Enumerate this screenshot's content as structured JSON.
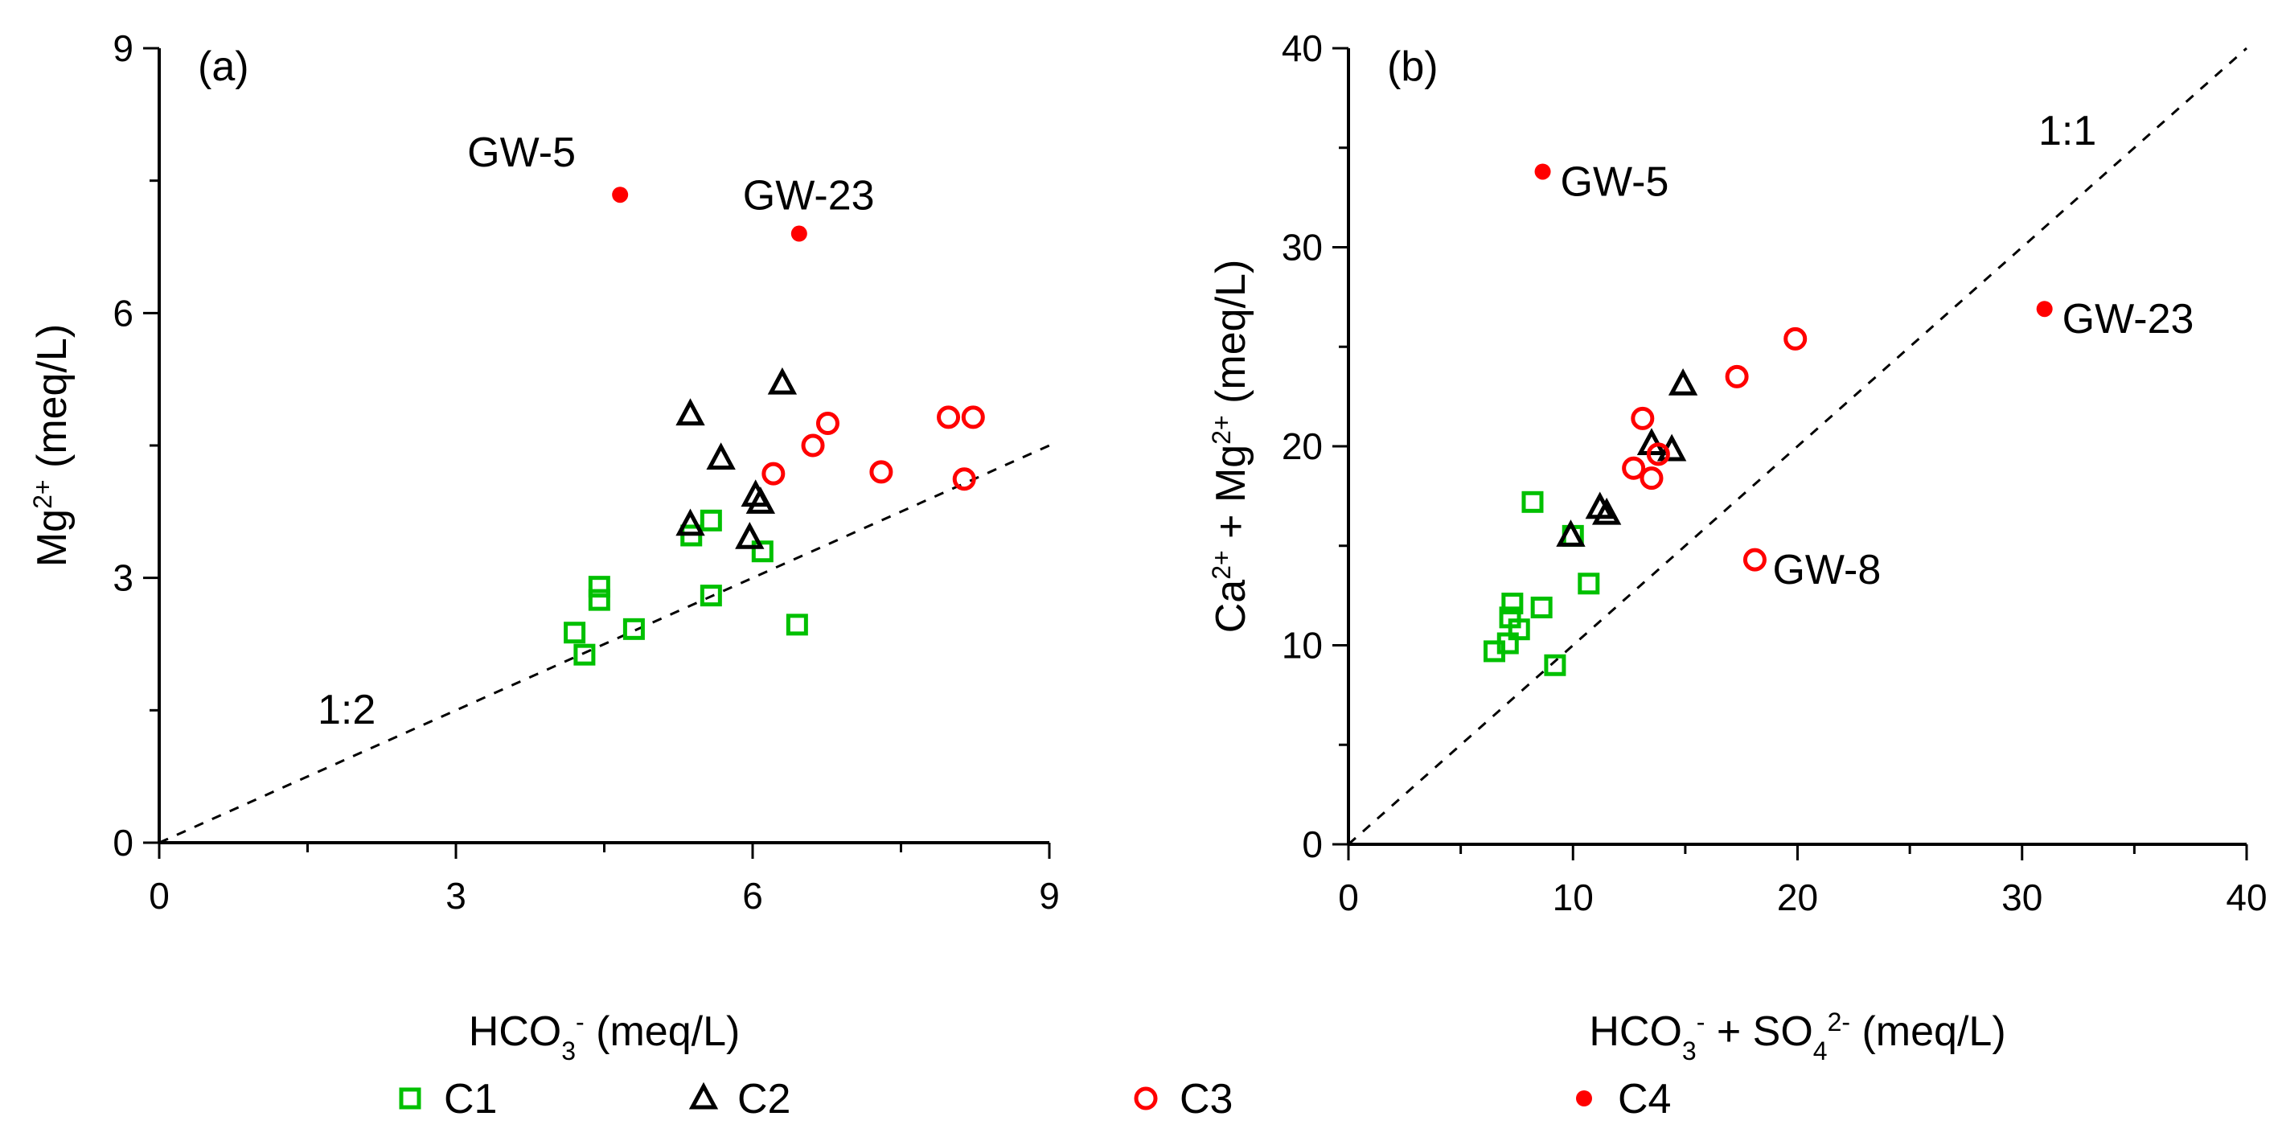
{
  "colors": {
    "c1": "#00c000",
    "c2": "#000000",
    "c3": "#ff0000",
    "c4": "#ff0000"
  },
  "legend": [
    {
      "key": "c1",
      "label": "C1",
      "marker": "square-open"
    },
    {
      "key": "c2",
      "label": "C2",
      "marker": "triangle-open"
    },
    {
      "key": "c3",
      "label": "C3",
      "marker": "circle-open"
    },
    {
      "key": "c4",
      "label": "C4",
      "marker": "circle-filled"
    }
  ],
  "chart_data": [
    {
      "type": "scatter",
      "panel_label": "(a)",
      "xlabel": {
        "base": "HCO",
        "sub": "3",
        "sup": "-",
        "unit": " (meq/L)"
      },
      "ylabel": {
        "base": "Mg",
        "sup": "2+",
        "unit": " (meq/L)"
      },
      "xlim": [
        0,
        9
      ],
      "ylim": [
        0,
        9
      ],
      "xticks": [
        "0",
        "3",
        "6",
        "9"
      ],
      "yticks": [
        "0",
        "3",
        "6",
        "9"
      ],
      "tick_step": 3,
      "reference_line": {
        "label": "1:2",
        "slope": 0.5
      },
      "series": [
        {
          "name": "C1",
          "key": "c1",
          "points": [
            [
              5.58,
              3.65
            ],
            [
              5.38,
              3.48
            ],
            [
              6.1,
              3.3
            ],
            [
              5.58,
              2.8
            ],
            [
              6.45,
              2.47
            ],
            [
              4.45,
              2.9
            ],
            [
              4.45,
              2.75
            ],
            [
              4.2,
              2.38
            ],
            [
              4.3,
              2.13
            ],
            [
              4.8,
              2.42
            ]
          ]
        },
        {
          "name": "C2",
          "key": "c2",
          "points": [
            [
              5.37,
              4.85
            ],
            [
              5.68,
              4.35
            ],
            [
              6.3,
              5.2
            ],
            [
              6.03,
              3.93
            ],
            [
              6.08,
              3.85
            ],
            [
              5.37,
              3.6
            ],
            [
              5.97,
              3.45
            ]
          ]
        },
        {
          "name": "C3",
          "key": "c3",
          "points": [
            [
              6.21,
              4.18
            ],
            [
              6.61,
              4.5
            ],
            [
              6.76,
              4.75
            ],
            [
              7.3,
              4.2
            ],
            [
              7.98,
              4.82
            ],
            [
              8.23,
              4.82
            ],
            [
              8.14,
              4.12
            ]
          ]
        },
        {
          "name": "C4",
          "key": "c4",
          "points": [
            [
              4.66,
              7.34
            ],
            [
              6.47,
              6.9
            ]
          ]
        }
      ],
      "annotations": [
        {
          "text": "GW-5",
          "x": 4.66,
          "y": 7.34,
          "position": "above-left"
        },
        {
          "text": "GW-23",
          "x": 6.47,
          "y": 6.9,
          "position": "above"
        }
      ]
    },
    {
      "type": "scatter",
      "panel_label": "(b)",
      "xlabel": {
        "parts": [
          {
            "base": "HCO",
            "sub": "3",
            "sup": "-"
          },
          {
            "base": " + SO",
            "sub": "4",
            "sup": "2-"
          }
        ],
        "unit": " (meq/L)"
      },
      "ylabel": {
        "parts": [
          {
            "base": "Ca",
            "sup": "2+"
          },
          {
            "base": " + Mg",
            "sup": "2+"
          }
        ],
        "unit": " (meq/L)"
      },
      "xlim": [
        0,
        40
      ],
      "ylim": [
        0,
        40
      ],
      "xticks": [
        "0",
        "10",
        "20",
        "30",
        "40"
      ],
      "yticks": [
        "0",
        "10",
        "20",
        "30",
        "40"
      ],
      "tick_step": 10,
      "reference_line": {
        "label": "1:1",
        "slope": 1
      },
      "series": [
        {
          "name": "C1",
          "key": "c1",
          "points": [
            [
              8.2,
              17.2
            ],
            [
              10.7,
              13.1
            ],
            [
              7.3,
              12.1
            ],
            [
              8.6,
              11.9
            ],
            [
              7.2,
              11.4
            ],
            [
              7.6,
              10.8
            ],
            [
              7.1,
              10.1
            ],
            [
              6.5,
              9.7
            ],
            [
              9.2,
              9.0
            ],
            [
              10.0,
              15.5
            ]
          ]
        },
        {
          "name": "C2",
          "key": "c2",
          "points": [
            [
              14.9,
              23.1
            ],
            [
              13.5,
              20.1
            ],
            [
              14.4,
              19.8
            ],
            [
              11.2,
              16.9
            ],
            [
              11.5,
              16.6
            ],
            [
              9.9,
              15.5
            ]
          ]
        },
        {
          "name": "C3",
          "key": "c3",
          "points": [
            [
              19.9,
              25.4
            ],
            [
              17.3,
              23.5
            ],
            [
              13.1,
              21.4
            ],
            [
              13.8,
              19.6
            ],
            [
              12.7,
              18.9
            ],
            [
              13.5,
              18.4
            ],
            [
              18.1,
              14.3
            ]
          ]
        },
        {
          "name": "C4",
          "key": "c4",
          "points": [
            [
              8.65,
              33.8
            ],
            [
              31.0,
              26.9
            ]
          ]
        }
      ],
      "annotations": [
        {
          "text": "GW-5",
          "x": 8.65,
          "y": 33.8,
          "position": "right"
        },
        {
          "text": "GW-23",
          "x": 31.0,
          "y": 26.9,
          "position": "right"
        },
        {
          "text": "GW-8",
          "x": 18.1,
          "y": 14.3,
          "position": "right"
        }
      ]
    }
  ]
}
